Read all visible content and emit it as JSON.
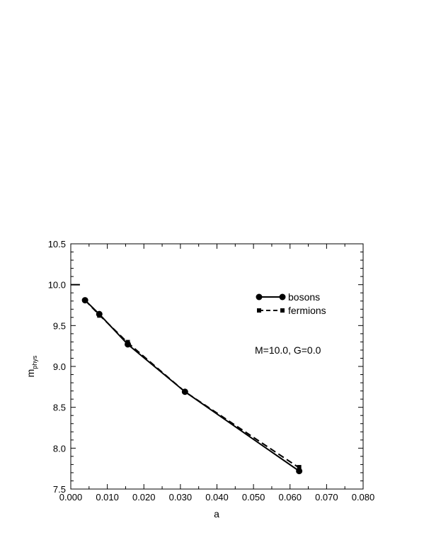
{
  "chart_data": {
    "type": "line",
    "xlabel": "a",
    "ylabel": "m",
    "ylabel_sub": "phys",
    "xlim": [
      0.0,
      0.08
    ],
    "ylim": [
      7.5,
      10.5
    ],
    "xticks": [
      "0.000",
      "0.010",
      "0.020",
      "0.030",
      "0.040",
      "0.050",
      "0.060",
      "0.070",
      "0.080"
    ],
    "yticks": [
      "7.5",
      "8.0",
      "8.5",
      "9.0",
      "9.5",
      "10.0",
      "10.5"
    ],
    "grid": false,
    "legend_placement": "top-right",
    "annotation": "M=10.0, G=0.0",
    "continuum_marker": {
      "x": [
        0.0,
        0.0025
      ],
      "y": 10.0
    },
    "series": [
      {
        "name": "bosons",
        "style": "solid",
        "marker": "circle",
        "x": [
          0.0039,
          0.0078,
          0.0156,
          0.03125,
          0.0625
        ],
        "y": [
          9.81,
          9.64,
          9.27,
          8.69,
          7.72
        ],
        "yerr": [
          0.01,
          0.02,
          0.02,
          0.01,
          0.02
        ]
      },
      {
        "name": "fermions",
        "style": "dashed",
        "marker": "square",
        "x": [
          0.0039,
          0.0078,
          0.0156,
          0.03125,
          0.0625
        ],
        "y": [
          9.81,
          9.63,
          9.29,
          8.69,
          7.76
        ],
        "yerr": [
          0.01,
          0.03,
          0.03,
          0.02,
          0.03
        ]
      }
    ]
  }
}
